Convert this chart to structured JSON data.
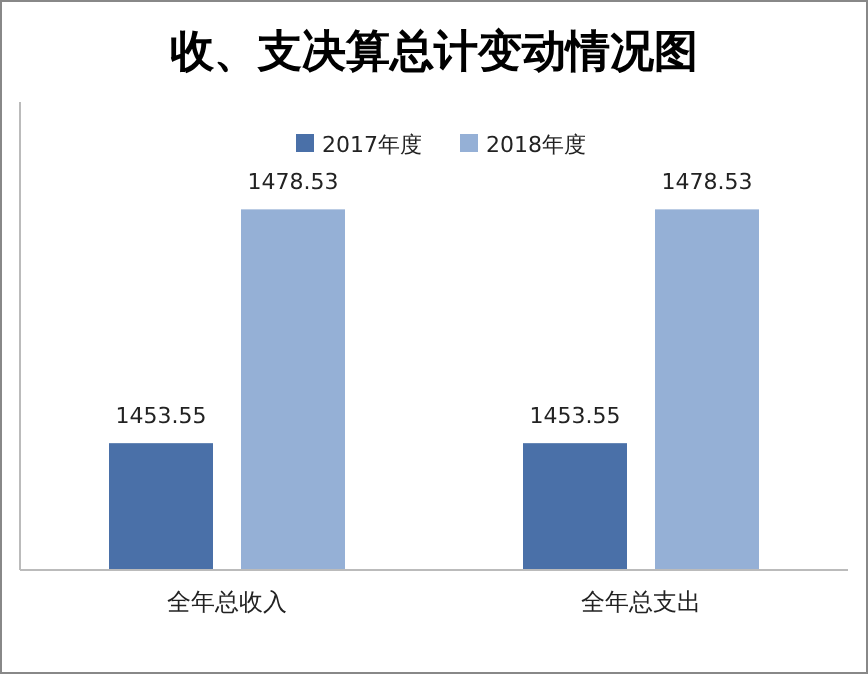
{
  "chart_data": {
    "type": "bar",
    "title": "收、支决算总计变动情况图",
    "categories": [
      "全年总收入",
      "全年总支出"
    ],
    "series": [
      {
        "name": "2017年度",
        "color": "#4a70a8",
        "values": [
          1453.55,
          1453.55
        ]
      },
      {
        "name": "2018年度",
        "color": "#95b0d6",
        "values": [
          1478.53,
          1478.53
        ]
      }
    ],
    "ylim": [
      1440,
      1490
    ],
    "tick_labels": "x",
    "data_labels": true,
    "legend": "top",
    "grid": false
  }
}
